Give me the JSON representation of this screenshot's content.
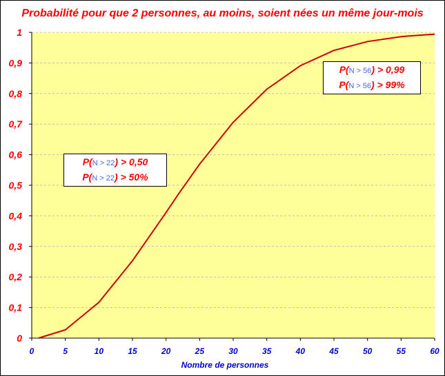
{
  "chart_data": {
    "type": "line",
    "title": "Probabilité pour que 2 personnes, au moins, soient nées un même jour-mois",
    "xlabel": "Nombre de personnes",
    "ylabel": "",
    "xlim": [
      0,
      60
    ],
    "ylim": [
      0,
      1
    ],
    "x_ticks": [
      "0",
      "5",
      "10",
      "15",
      "20",
      "25",
      "30",
      "35",
      "40",
      "45",
      "50",
      "55",
      "60"
    ],
    "y_ticks": [
      "0",
      "0,1",
      "0,2",
      "0,3",
      "0,4",
      "0,5",
      "0,6",
      "0,7",
      "0,8",
      "0,9",
      "1"
    ],
    "grid": "horizontal dashed",
    "plot_background": "#ffff99",
    "line_color": "#cc0000",
    "x": [
      1,
      5,
      10,
      15,
      20,
      22,
      23,
      25,
      30,
      35,
      40,
      45,
      50,
      55,
      56,
      60
    ],
    "y": [
      0,
      0.027,
      0.117,
      0.253,
      0.411,
      0.476,
      0.507,
      0.569,
      0.706,
      0.814,
      0.891,
      0.941,
      0.97,
      0.986,
      0.988,
      0.994
    ]
  },
  "annotations": [
    {
      "line1_a": "P(",
      "line1_n": "N > 22",
      "line1_b": ") > 0,50",
      "line2_a": "P(",
      "line2_n": "N > 22",
      "line2_b": ") >  50%"
    },
    {
      "line1_a": "P(",
      "line1_n": "N > 56",
      "line1_b": ") > 0,99",
      "line2_a": "P(",
      "line2_n": "N > 56",
      "line2_b": ") >  99%"
    }
  ],
  "colors": {
    "title": "#ff0000",
    "y_tick_labels": "#ff0000",
    "x_tick_labels": "#0000cc",
    "curve": "#cc0000"
  }
}
